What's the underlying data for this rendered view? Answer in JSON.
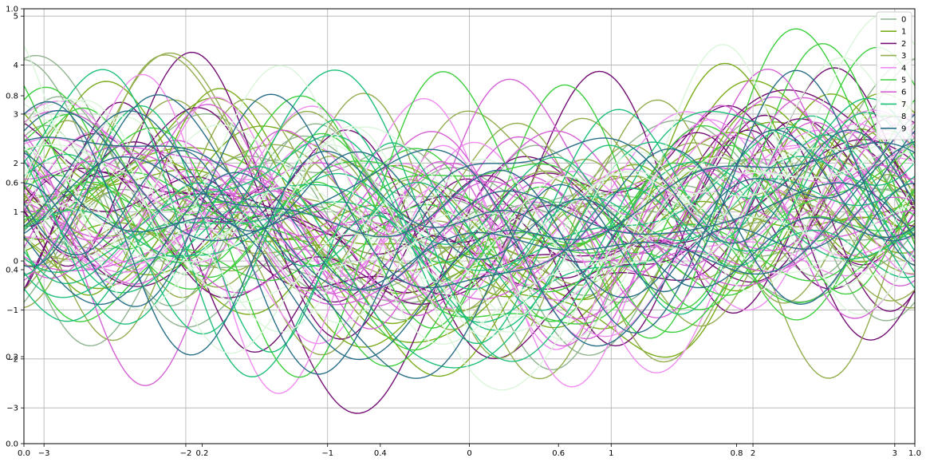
{
  "chart_data": {
    "type": "line",
    "description_of_marks": "Andrews-curve style plot: many smooth curves, each colored by class label 0-9",
    "legend": {
      "placement": "top-right",
      "entries": [
        {
          "label": "0",
          "color": "#8fb48f"
        },
        {
          "label": "1",
          "color": "#7aad1a"
        },
        {
          "label": "2",
          "color": "#730f73"
        },
        {
          "label": "3",
          "color": "#93ad4f"
        },
        {
          "label": "4",
          "color": "#f08cf0"
        },
        {
          "label": "5",
          "color": "#3ecf3e"
        },
        {
          "label": "6",
          "color": "#d561d5"
        },
        {
          "label": "7",
          "color": "#1fbf7a"
        },
        {
          "label": "8",
          "color": "#dbf5db"
        },
        {
          "label": "9",
          "color": "#2a6f88"
        }
      ]
    },
    "axes_inner": {
      "xlim": [
        -3.14159,
        3.14159
      ],
      "ylim": [
        -3.73,
        5.15
      ],
      "xticks": [
        -3,
        -2,
        -1,
        0,
        1,
        2,
        3
      ],
      "yticks": [
        -3,
        -2,
        -1,
        0,
        1,
        2,
        3,
        4,
        5
      ],
      "grid": true
    },
    "axes_outer": {
      "xlim": [
        0.0,
        1.0
      ],
      "ylim": [
        0.0,
        1.0
      ],
      "xticks": [
        "0.0",
        "0.2",
        "0.4",
        "0.6",
        "0.8",
        "1.0"
      ],
      "yticks": [
        "0.0",
        "0.2",
        "0.4",
        "0.6",
        "0.8",
        "1.0"
      ]
    },
    "curves_per_class": 10
  }
}
